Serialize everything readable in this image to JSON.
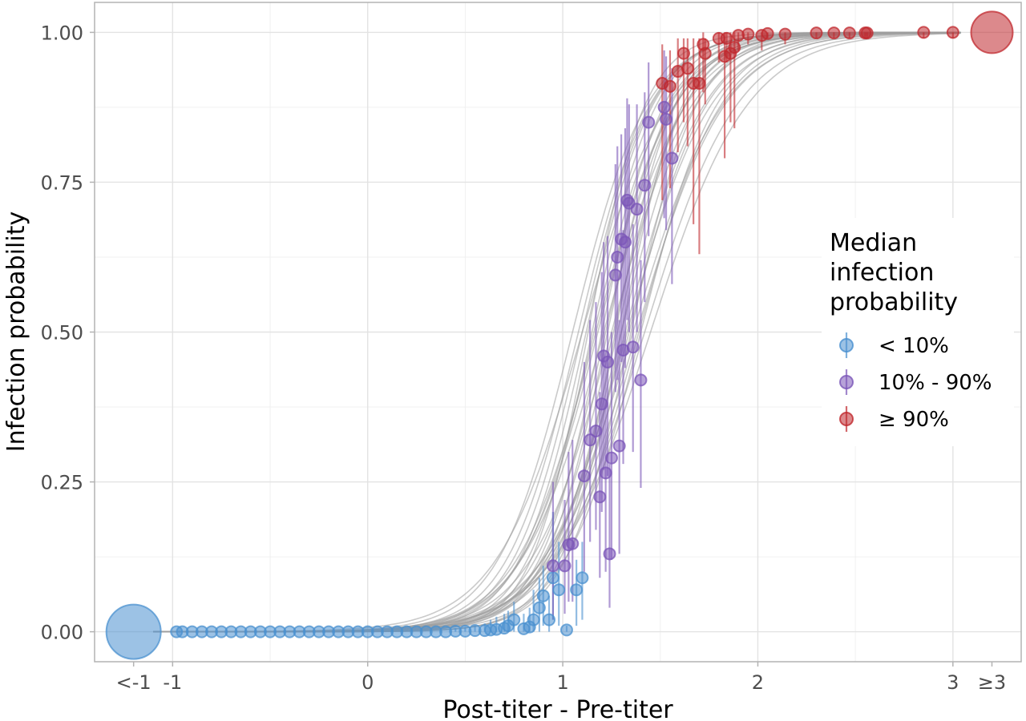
{
  "chart_data": {
    "type": "scatter",
    "xlabel": "Post-titer - Pre-titer",
    "ylabel": "Infection probability",
    "xlim": [
      -1.4,
      3.35
    ],
    "ylim": [
      -0.05,
      1.05
    ],
    "x_ticks": [
      {
        "value": -1.2,
        "label": "<-1"
      },
      {
        "value": -1.0,
        "label": "-1"
      },
      {
        "value": 0,
        "label": "0"
      },
      {
        "value": 1,
        "label": "1"
      },
      {
        "value": 2,
        "label": "2"
      },
      {
        "value": 3,
        "label": "3"
      },
      {
        "value": 3.2,
        "label": "≥3"
      }
    ],
    "x_gridlines": [
      -1,
      0,
      1,
      2,
      3
    ],
    "y_ticks": [
      {
        "value": 0,
        "label": "0.00"
      },
      {
        "value": 0.25,
        "label": "0.25"
      },
      {
        "value": 0.5,
        "label": "0.50"
      },
      {
        "value": 0.75,
        "label": "0.75"
      },
      {
        "value": 1,
        "label": "1.00"
      }
    ],
    "grid": true,
    "legend": {
      "title_lines": [
        "Median",
        "infection",
        "probability"
      ],
      "placement": "right",
      "entries": [
        {
          "label": "< 10%",
          "color": "#4a90cf"
        },
        {
          "label": "10% - 90%",
          "color": "#7b56b8"
        },
        {
          "label": "≥ 90%",
          "color": "#c0282d"
        }
      ]
    },
    "curves": {
      "color": "#9e9e9e",
      "description_params": [
        [
          1.05,
          5.2
        ],
        [
          1.08,
          5.4
        ],
        [
          1.1,
          5.6
        ],
        [
          1.12,
          5.8
        ],
        [
          1.15,
          6.0
        ],
        [
          1.18,
          5.0
        ],
        [
          1.2,
          6.2
        ],
        [
          1.22,
          5.5
        ],
        [
          1.25,
          4.8
        ],
        [
          1.27,
          6.5
        ],
        [
          1.3,
          5.2
        ],
        [
          1.33,
          4.6
        ],
        [
          1.35,
          5.9
        ],
        [
          1.38,
          4.4
        ],
        [
          1.4,
          5.1
        ],
        [
          1.13,
          6.8
        ],
        [
          1.17,
          4.9
        ],
        [
          1.23,
          6.1
        ],
        [
          1.28,
          5.7
        ],
        [
          1.32,
          4.9
        ],
        [
          1.36,
          4.3
        ],
        [
          1.42,
          4.2
        ],
        [
          1.45,
          4.0
        ],
        [
          1.1,
          4.5
        ],
        [
          1.16,
          5.3
        ],
        [
          1.21,
          4.7
        ],
        [
          1.26,
          5.4
        ],
        [
          1.3,
          6.3
        ],
        [
          1.34,
          5.0
        ],
        [
          1.39,
          4.7
        ]
      ]
    },
    "series": [
      {
        "name": "< 10%",
        "color": "#4a90cf",
        "points": [
          {
            "x": -1.2,
            "y": 0.0,
            "lo": 0.0,
            "hi": 0.0,
            "size": 34
          },
          {
            "x": -0.98,
            "y": 0.0,
            "lo": 0.0,
            "hi": 0.0,
            "size": 7
          },
          {
            "x": -0.95,
            "y": 0.0,
            "lo": 0.0,
            "hi": 0.0,
            "size": 7
          },
          {
            "x": -0.9,
            "y": 0.0,
            "lo": 0.0,
            "hi": 0.0,
            "size": 7
          },
          {
            "x": -0.85,
            "y": 0.0,
            "lo": 0.0,
            "hi": 0.0,
            "size": 7
          },
          {
            "x": -0.8,
            "y": 0.0,
            "lo": 0.0,
            "hi": 0.0,
            "size": 7
          },
          {
            "x": -0.75,
            "y": 0.0,
            "lo": 0.0,
            "hi": 0.0,
            "size": 7
          },
          {
            "x": -0.7,
            "y": 0.0,
            "lo": 0.0,
            "hi": 0.0,
            "size": 7
          },
          {
            "x": -0.65,
            "y": 0.0,
            "lo": 0.0,
            "hi": 0.0,
            "size": 7
          },
          {
            "x": -0.6,
            "y": 0.0,
            "lo": 0.0,
            "hi": 0.0,
            "size": 7
          },
          {
            "x": -0.55,
            "y": 0.0,
            "lo": 0.0,
            "hi": 0.0,
            "size": 7
          },
          {
            "x": -0.5,
            "y": 0.0,
            "lo": 0.0,
            "hi": 0.0,
            "size": 7
          },
          {
            "x": -0.45,
            "y": 0.0,
            "lo": 0.0,
            "hi": 0.0,
            "size": 7
          },
          {
            "x": -0.4,
            "y": 0.0,
            "lo": 0.0,
            "hi": 0.0,
            "size": 7
          },
          {
            "x": -0.35,
            "y": 0.0,
            "lo": 0.0,
            "hi": 0.0,
            "size": 7
          },
          {
            "x": -0.3,
            "y": 0.0,
            "lo": 0.0,
            "hi": 0.0,
            "size": 7
          },
          {
            "x": -0.25,
            "y": 0.0,
            "lo": 0.0,
            "hi": 0.0,
            "size": 7
          },
          {
            "x": -0.2,
            "y": 0.0,
            "lo": 0.0,
            "hi": 0.0,
            "size": 7
          },
          {
            "x": -0.15,
            "y": 0.0,
            "lo": 0.0,
            "hi": 0.0,
            "size": 7
          },
          {
            "x": -0.1,
            "y": 0.0,
            "lo": 0.0,
            "hi": 0.0,
            "size": 7
          },
          {
            "x": -0.05,
            "y": 0.0,
            "lo": 0.0,
            "hi": 0.0,
            "size": 7
          },
          {
            "x": 0.0,
            "y": 0.0,
            "lo": 0.0,
            "hi": 0.0,
            "size": 7
          },
          {
            "x": 0.05,
            "y": 0.0,
            "lo": 0.0,
            "hi": 0.0,
            "size": 7
          },
          {
            "x": 0.1,
            "y": 0.0,
            "lo": 0.0,
            "hi": 0.0,
            "size": 7
          },
          {
            "x": 0.15,
            "y": 0.0,
            "lo": 0.0,
            "hi": 0.0,
            "size": 7
          },
          {
            "x": 0.2,
            "y": 0.0,
            "lo": 0.0,
            "hi": 0.0,
            "size": 7
          },
          {
            "x": 0.25,
            "y": 0.0,
            "lo": 0.0,
            "hi": 0.0,
            "size": 7
          },
          {
            "x": 0.3,
            "y": 0.0,
            "lo": 0.0,
            "hi": 0.0,
            "size": 7
          },
          {
            "x": 0.35,
            "y": 0.0,
            "lo": 0.0,
            "hi": 0.003,
            "size": 7
          },
          {
            "x": 0.4,
            "y": 0.0,
            "lo": 0.0,
            "hi": 0.004,
            "size": 7
          },
          {
            "x": 0.45,
            "y": 0.001,
            "lo": 0.0,
            "hi": 0.006,
            "size": 7
          },
          {
            "x": 0.5,
            "y": 0.001,
            "lo": 0.0,
            "hi": 0.008,
            "size": 7
          },
          {
            "x": 0.55,
            "y": 0.002,
            "lo": 0.0,
            "hi": 0.01,
            "size": 7
          },
          {
            "x": 0.6,
            "y": 0.002,
            "lo": 0.0,
            "hi": 0.014,
            "size": 7
          },
          {
            "x": 0.63,
            "y": 0.003,
            "lo": 0.0,
            "hi": 0.02,
            "size": 7
          },
          {
            "x": 0.66,
            "y": 0.004,
            "lo": 0.0,
            "hi": 0.025,
            "size": 7
          },
          {
            "x": 0.7,
            "y": 0.006,
            "lo": 0.0,
            "hi": 0.03,
            "size": 7
          },
          {
            "x": 0.72,
            "y": 0.01,
            "lo": 0.0,
            "hi": 0.035,
            "size": 7
          },
          {
            "x": 0.75,
            "y": 0.02,
            "lo": 0.0,
            "hi": 0.05,
            "size": 7
          },
          {
            "x": 0.8,
            "y": 0.005,
            "lo": 0.0,
            "hi": 0.03,
            "size": 7
          },
          {
            "x": 0.83,
            "y": 0.008,
            "lo": 0.0,
            "hi": 0.04,
            "size": 7
          },
          {
            "x": 0.85,
            "y": 0.02,
            "lo": 0.0,
            "hi": 0.07,
            "size": 7
          },
          {
            "x": 0.88,
            "y": 0.04,
            "lo": 0.0,
            "hi": 0.09,
            "size": 7
          },
          {
            "x": 0.9,
            "y": 0.06,
            "lo": 0.01,
            "hi": 0.11,
            "size": 7
          },
          {
            "x": 0.93,
            "y": 0.02,
            "lo": 0.0,
            "hi": 0.06,
            "size": 7
          },
          {
            "x": 0.95,
            "y": 0.09,
            "lo": 0.02,
            "hi": 0.2,
            "size": 7
          },
          {
            "x": 0.98,
            "y": 0.07,
            "lo": 0.01,
            "hi": 0.15,
            "size": 7
          },
          {
            "x": 1.02,
            "y": 0.003,
            "lo": 0.0,
            "hi": 0.01,
            "size": 7
          },
          {
            "x": 1.07,
            "y": 0.07,
            "lo": 0.01,
            "hi": 0.12,
            "size": 7
          },
          {
            "x": 1.1,
            "y": 0.09,
            "lo": 0.02,
            "hi": 0.15,
            "size": 7
          }
        ]
      },
      {
        "name": "10% - 90%",
        "color": "#7b56b8",
        "points": [
          {
            "x": 0.95,
            "y": 0.11,
            "lo": 0.02,
            "hi": 0.25,
            "size": 7
          },
          {
            "x": 1.01,
            "y": 0.11,
            "lo": 0.03,
            "hi": 0.22,
            "size": 7
          },
          {
            "x": 1.03,
            "y": 0.145,
            "lo": 0.05,
            "hi": 0.3,
            "size": 7
          },
          {
            "x": 1.05,
            "y": 0.147,
            "lo": 0.05,
            "hi": 0.32,
            "size": 7
          },
          {
            "x": 1.11,
            "y": 0.26,
            "lo": 0.1,
            "hi": 0.45,
            "size": 7
          },
          {
            "x": 1.14,
            "y": 0.32,
            "lo": 0.15,
            "hi": 0.52,
            "size": 7
          },
          {
            "x": 1.17,
            "y": 0.335,
            "lo": 0.17,
            "hi": 0.55,
            "size": 7
          },
          {
            "x": 1.19,
            "y": 0.225,
            "lo": 0.09,
            "hi": 0.4,
            "size": 7
          },
          {
            "x": 1.2,
            "y": 0.38,
            "lo": 0.2,
            "hi": 0.6,
            "size": 7
          },
          {
            "x": 1.21,
            "y": 0.46,
            "lo": 0.27,
            "hi": 0.65,
            "size": 7
          },
          {
            "x": 1.22,
            "y": 0.265,
            "lo": 0.1,
            "hi": 0.45,
            "size": 7
          },
          {
            "x": 1.23,
            "y": 0.45,
            "lo": 0.26,
            "hi": 0.66,
            "size": 7
          },
          {
            "x": 1.24,
            "y": 0.13,
            "lo": 0.04,
            "hi": 0.28,
            "size": 7
          },
          {
            "x": 1.25,
            "y": 0.29,
            "lo": 0.12,
            "hi": 0.5,
            "size": 7
          },
          {
            "x": 1.27,
            "y": 0.595,
            "lo": 0.4,
            "hi": 0.78,
            "size": 7
          },
          {
            "x": 1.28,
            "y": 0.625,
            "lo": 0.42,
            "hi": 0.81,
            "size": 7
          },
          {
            "x": 1.29,
            "y": 0.31,
            "lo": 0.13,
            "hi": 0.52,
            "size": 7
          },
          {
            "x": 1.3,
            "y": 0.655,
            "lo": 0.45,
            "hi": 0.83,
            "size": 7
          },
          {
            "x": 1.31,
            "y": 0.47,
            "lo": 0.28,
            "hi": 0.67,
            "size": 7
          },
          {
            "x": 1.32,
            "y": 0.65,
            "lo": 0.44,
            "hi": 0.84,
            "size": 7
          },
          {
            "x": 1.33,
            "y": 0.72,
            "lo": 0.52,
            "hi": 0.89,
            "size": 7
          },
          {
            "x": 1.34,
            "y": 0.715,
            "lo": 0.5,
            "hi": 0.88,
            "size": 7
          },
          {
            "x": 1.36,
            "y": 0.475,
            "lo": 0.3,
            "hi": 0.68,
            "size": 7
          },
          {
            "x": 1.38,
            "y": 0.705,
            "lo": 0.5,
            "hi": 0.88,
            "size": 7
          },
          {
            "x": 1.4,
            "y": 0.42,
            "lo": 0.24,
            "hi": 0.62,
            "size": 7
          },
          {
            "x": 1.42,
            "y": 0.745,
            "lo": 0.55,
            "hi": 0.9,
            "size": 7
          },
          {
            "x": 1.44,
            "y": 0.85,
            "lo": 0.66,
            "hi": 0.95,
            "size": 7
          },
          {
            "x": 1.52,
            "y": 0.875,
            "lo": 0.69,
            "hi": 0.97,
            "size": 7
          },
          {
            "x": 1.53,
            "y": 0.855,
            "lo": 0.67,
            "hi": 0.96,
            "size": 7
          },
          {
            "x": 1.56,
            "y": 0.79,
            "lo": 0.58,
            "hi": 0.94,
            "size": 7
          }
        ]
      },
      {
        "name": "≥ 90%",
        "color": "#c0282d",
        "points": [
          {
            "x": 1.51,
            "y": 0.915,
            "lo": 0.72,
            "hi": 0.98,
            "size": 7
          },
          {
            "x": 1.55,
            "y": 0.91,
            "lo": 0.74,
            "hi": 0.97,
            "size": 7
          },
          {
            "x": 1.59,
            "y": 0.935,
            "lo": 0.8,
            "hi": 0.99,
            "size": 7
          },
          {
            "x": 1.62,
            "y": 0.965,
            "lo": 0.85,
            "hi": 0.99,
            "size": 7
          },
          {
            "x": 1.64,
            "y": 0.94,
            "lo": 0.81,
            "hi": 0.99,
            "size": 7
          },
          {
            "x": 1.67,
            "y": 0.915,
            "lo": 0.68,
            "hi": 0.99,
            "size": 7
          },
          {
            "x": 1.7,
            "y": 0.915,
            "lo": 0.63,
            "hi": 0.99,
            "size": 7
          },
          {
            "x": 1.72,
            "y": 0.98,
            "lo": 0.9,
            "hi": 1.0,
            "size": 7
          },
          {
            "x": 1.73,
            "y": 0.965,
            "lo": 0.88,
            "hi": 0.99,
            "size": 7
          },
          {
            "x": 1.8,
            "y": 0.99,
            "lo": 0.95,
            "hi": 1.0,
            "size": 7
          },
          {
            "x": 1.83,
            "y": 0.96,
            "lo": 0.79,
            "hi": 1.0,
            "size": 7
          },
          {
            "x": 1.84,
            "y": 0.99,
            "lo": 0.95,
            "hi": 1.0,
            "size": 7
          },
          {
            "x": 1.86,
            "y": 0.965,
            "lo": 0.85,
            "hi": 1.0,
            "size": 7
          },
          {
            "x": 1.88,
            "y": 0.975,
            "lo": 0.84,
            "hi": 1.0,
            "size": 7
          },
          {
            "x": 1.9,
            "y": 0.995,
            "lo": 0.97,
            "hi": 1.0,
            "size": 7
          },
          {
            "x": 1.95,
            "y": 0.997,
            "lo": 0.98,
            "hi": 1.0,
            "size": 7
          },
          {
            "x": 2.02,
            "y": 0.995,
            "lo": 0.97,
            "hi": 1.0,
            "size": 7
          },
          {
            "x": 2.05,
            "y": 0.998,
            "lo": 0.99,
            "hi": 1.0,
            "size": 7
          },
          {
            "x": 2.14,
            "y": 0.997,
            "lo": 0.98,
            "hi": 1.0,
            "size": 7
          },
          {
            "x": 2.3,
            "y": 0.999,
            "lo": 0.99,
            "hi": 1.0,
            "size": 7
          },
          {
            "x": 2.39,
            "y": 0.999,
            "lo": 0.99,
            "hi": 1.0,
            "size": 7
          },
          {
            "x": 2.47,
            "y": 0.999,
            "lo": 0.99,
            "hi": 1.0,
            "size": 7
          },
          {
            "x": 2.55,
            "y": 0.999,
            "lo": 0.99,
            "hi": 1.0,
            "size": 7
          },
          {
            "x": 2.56,
            "y": 0.999,
            "lo": 0.99,
            "hi": 1.0,
            "size": 7
          },
          {
            "x": 2.85,
            "y": 1.0,
            "lo": 0.99,
            "hi": 1.0,
            "size": 7
          },
          {
            "x": 3.0,
            "y": 1.0,
            "lo": 0.99,
            "hi": 1.0,
            "size": 7
          },
          {
            "x": 3.2,
            "y": 1.0,
            "lo": 1.0,
            "hi": 1.0,
            "size": 26
          }
        ]
      }
    ]
  }
}
